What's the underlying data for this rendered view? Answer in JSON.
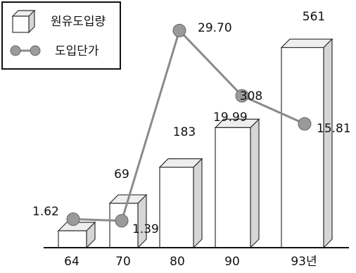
{
  "chart_data": {
    "type": "bar",
    "categories": [
      "64",
      "70",
      "80",
      "90",
      "93년"
    ],
    "series": [
      {
        "name": "원유도입량",
        "type": "bar",
        "values": [
          null,
          69,
          183,
          308,
          561
        ]
      },
      {
        "name": "도입단가",
        "type": "line",
        "values": [
          1.62,
          1.39,
          29.7,
          19.99,
          15.81
        ]
      }
    ],
    "bar_labels": [
      "",
      "69",
      "183",
      "308",
      "561"
    ],
    "line_labels": [
      "1.62",
      "1.39",
      "29.70",
      "19.99",
      "15.81"
    ],
    "legend": {
      "position": "top-left"
    }
  },
  "colors": {
    "bar_front": "#ffffff",
    "bar_side": "#d6d6d6",
    "bar_top": "#eeeeee",
    "line": "#8a8a8a",
    "marker": "#9a9a9a"
  }
}
